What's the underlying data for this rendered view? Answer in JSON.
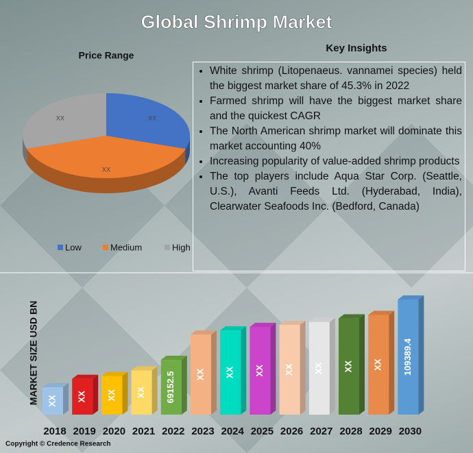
{
  "title": "Global Shrimp Market",
  "copyright": "Copyright © Credence Research",
  "key_insights": {
    "title": "Key Insights",
    "items": [
      "White shrimp (Litopenaeus. vannamei species) held the biggest market share of 45.3% in 2022",
      "Farmed shrimp will have the biggest market share and the quickest CAGR",
      "The North American shrimp market will dominate this market accounting 40%",
      "Increasing popularity of value-added shrimp products",
      "The top players include Aqua Star Corp. (Seattle, U.S.), Avanti Feeds Ltd. (Hyderabad, India), Clearwater Seafoods Inc. (Bedford, Canada)"
    ]
  },
  "chart_data": [
    {
      "type": "pie",
      "title": "Price Range",
      "categories": [
        "Low",
        "Medium",
        "High"
      ],
      "values": [
        30,
        40,
        30
      ],
      "value_labels": [
        "XX",
        "XX",
        "XX"
      ],
      "colors": [
        "#4472c4",
        "#ed7d31",
        "#a5a5a5"
      ],
      "legend": "bottom"
    },
    {
      "type": "bar",
      "y_label": "MARKET SIZE USD BN",
      "categories": [
        "2018",
        "2019",
        "2020",
        "2021",
        "2022",
        "2023",
        "2024",
        "2025",
        "2026",
        "2027",
        "2028",
        "2029",
        "2030"
      ],
      "values": [
        50900,
        56500,
        58400,
        62100,
        69152.5,
        86000,
        88800,
        91100,
        92500,
        94400,
        96800,
        99100,
        109389.4
      ],
      "value_labels": [
        "XX",
        "XX",
        "XX",
        "XX",
        "69152.5",
        "XX",
        "XX",
        "XX",
        "XX",
        "XX",
        "XX",
        "XX",
        "109389.4"
      ],
      "colors": [
        "#9dc3e6",
        "#e02020",
        "#ffc000",
        "#ffd966",
        "#70ad47",
        "#f4b183",
        "#00dcc0",
        "#cc44cc",
        "#f8cbad",
        "#e7e6e6",
        "#548235",
        "#e88a4a",
        "#5b9bd5"
      ]
    }
  ]
}
